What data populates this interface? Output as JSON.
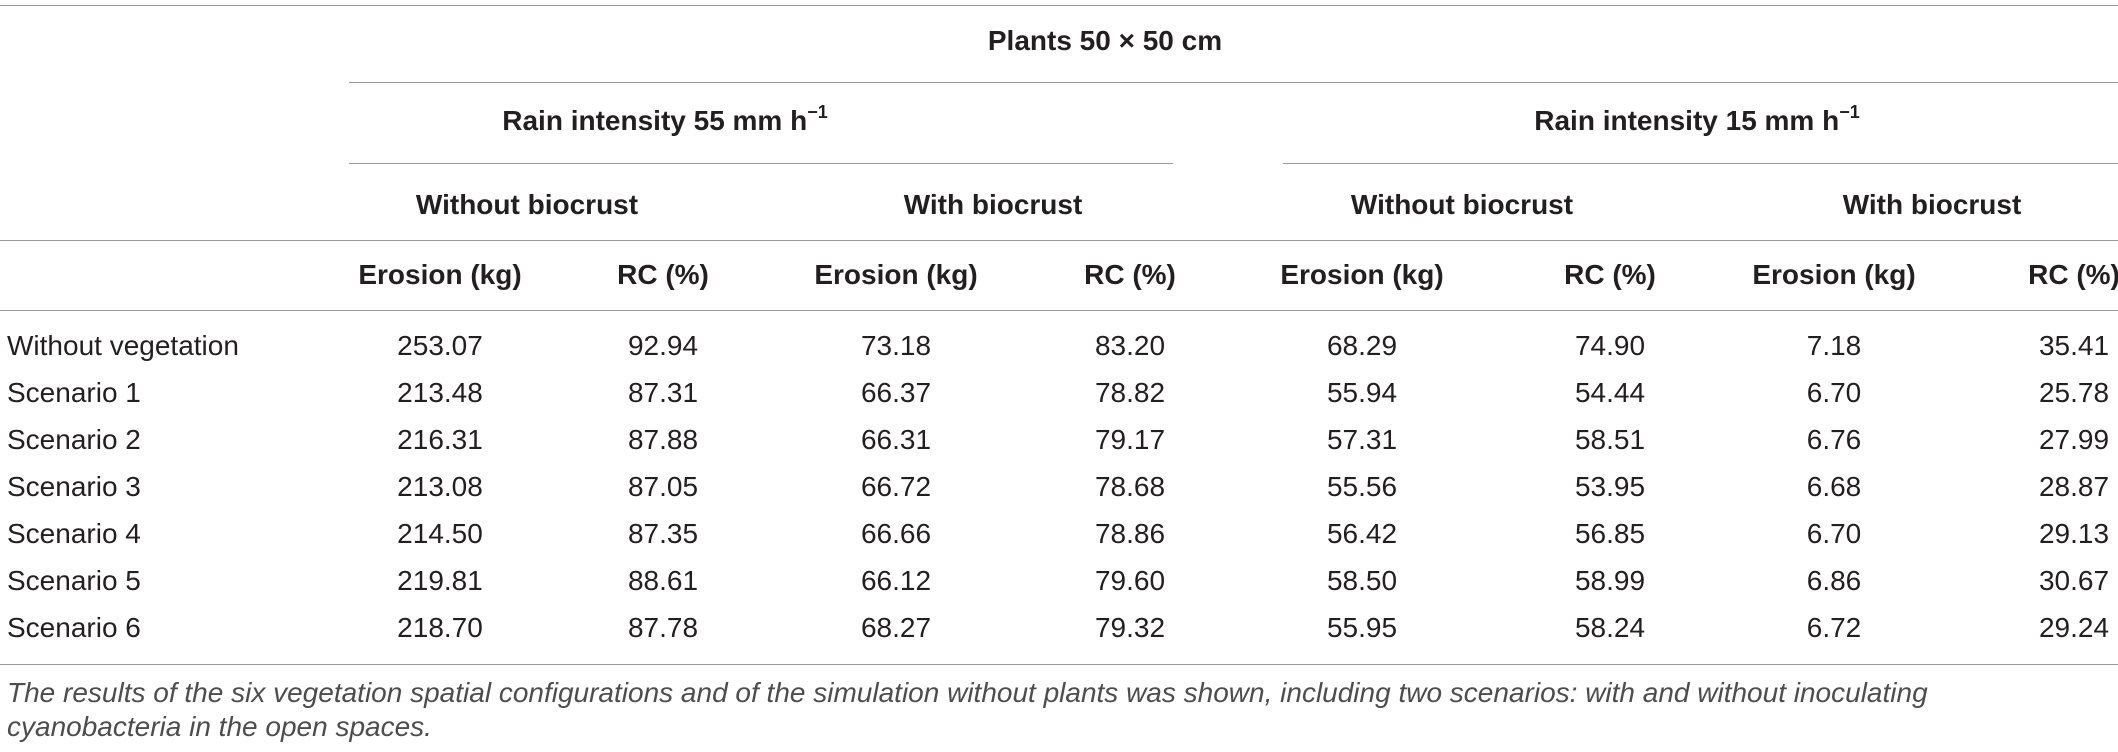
{
  "table": {
    "title": "Plants 50 × 50 cm",
    "groups": [
      {
        "label": "Rain intensity 55 mm h",
        "sup": "−1"
      },
      {
        "label": "Rain intensity 15 mm h",
        "sup": "−1"
      }
    ],
    "subgroups": [
      "Without biocrust",
      "With biocrust",
      "Without biocrust",
      "With biocrust"
    ],
    "columns": [
      "Erosion (kg)",
      "RC (%)",
      "Erosion (kg)",
      "RC (%)",
      "Erosion (kg)",
      "RC (%)",
      "Erosion (kg)",
      "RC (%)"
    ],
    "rows": [
      {
        "label": "Without vegetation",
        "values": [
          "253.07",
          "92.94",
          "73.18",
          "83.20",
          "68.29",
          "74.90",
          "7.18",
          "35.41"
        ]
      },
      {
        "label": "Scenario 1",
        "values": [
          "213.48",
          "87.31",
          "66.37",
          "78.82",
          "55.94",
          "54.44",
          "6.70",
          "25.78"
        ]
      },
      {
        "label": "Scenario 2",
        "values": [
          "216.31",
          "87.88",
          "66.31",
          "79.17",
          "57.31",
          "58.51",
          "6.76",
          "27.99"
        ]
      },
      {
        "label": "Scenario 3",
        "values": [
          "213.08",
          "87.05",
          "66.72",
          "78.68",
          "55.56",
          "53.95",
          "6.68",
          "28.87"
        ]
      },
      {
        "label": "Scenario 4",
        "values": [
          "214.50",
          "87.35",
          "66.66",
          "78.86",
          "56.42",
          "56.85",
          "6.70",
          "29.13"
        ]
      },
      {
        "label": "Scenario 5",
        "values": [
          "219.81",
          "88.61",
          "66.12",
          "79.60",
          "58.50",
          "58.99",
          "6.86",
          "30.67"
        ]
      },
      {
        "label": "Scenario 6",
        "values": [
          "218.70",
          "87.78",
          "68.27",
          "79.32",
          "55.95",
          "58.24",
          "6.72",
          "29.24"
        ]
      }
    ],
    "caption": "The results of the six vegetation spatial configurations and of the simulation without plants was shown, including two scenarios: with and without inoculating cyanobacteria in the open spaces."
  }
}
